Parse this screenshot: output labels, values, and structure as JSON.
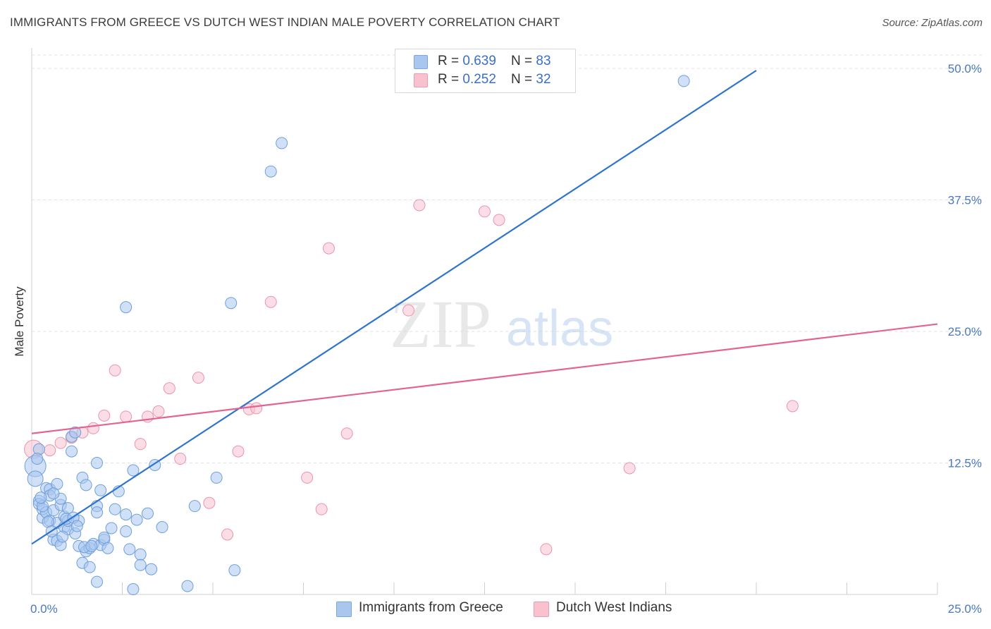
{
  "title": "IMMIGRANTS FROM GREECE VS DUTCH WEST INDIAN MALE POVERTY CORRELATION CHART",
  "source": "Source: ZipAtlas.com",
  "watermark": {
    "zip": "ZIP",
    "atlas": "atlas"
  },
  "legend": {
    "rows": [
      {
        "r_label": "R = ",
        "r_value": "0.639",
        "n_label": "N = ",
        "n_value": "83",
        "color": "#a9c7ee",
        "border": "#7aa7e0"
      },
      {
        "r_label": "R = ",
        "r_value": "0.252",
        "n_label": "N = ",
        "n_value": "32",
        "color": "#f7c1d0",
        "border": "#ee9ab2"
      }
    ]
  },
  "chart_data": {
    "type": "scatter",
    "title": "IMMIGRANTS FROM GREECE VS DUTCH WEST INDIAN MALE POVERTY CORRELATION CHART",
    "xlabel": "",
    "ylabel": "Male Poverty",
    "xlim": [
      0,
      25
    ],
    "ylim": [
      0,
      50
    ],
    "x_tick_labels": [
      "0.0%",
      "25.0%"
    ],
    "y_ticks": [
      12.5,
      25,
      37.5,
      50
    ],
    "y_tick_labels": [
      "12.5%",
      "25.0%",
      "37.5%",
      "50.0%"
    ],
    "grid": true,
    "legend_position": "top-center",
    "series": [
      {
        "name": "Immigrants from Greece",
        "color": "#a9c7ee",
        "stroke": "#6f9fdc",
        "line_color": "#2f74cc",
        "trend": {
          "x": [
            0,
            20
          ],
          "y": [
            4.8,
            49.8
          ]
        },
        "points": [
          [
            0.1,
            12.2
          ],
          [
            0.1,
            11.0
          ],
          [
            0.2,
            13.8
          ],
          [
            0.2,
            8.9
          ],
          [
            0.2,
            8.6
          ],
          [
            0.3,
            7.3
          ],
          [
            0.3,
            8.1
          ],
          [
            0.4,
            7.8
          ],
          [
            0.4,
            10.1
          ],
          [
            0.5,
            10.0
          ],
          [
            0.5,
            9.4
          ],
          [
            0.5,
            7.0
          ],
          [
            0.6,
            5.2
          ],
          [
            0.6,
            8.0
          ],
          [
            0.7,
            5.1
          ],
          [
            0.7,
            6.8
          ],
          [
            0.7,
            10.5
          ],
          [
            0.8,
            8.5
          ],
          [
            0.8,
            9.1
          ],
          [
            0.8,
            4.7
          ],
          [
            0.9,
            7.4
          ],
          [
            0.9,
            6.4
          ],
          [
            1.0,
            6.2
          ],
          [
            1.0,
            7.0
          ],
          [
            1.0,
            8.2
          ],
          [
            1.1,
            13.6
          ],
          [
            1.1,
            15.0
          ],
          [
            1.2,
            15.4
          ],
          [
            1.2,
            5.8
          ],
          [
            1.3,
            7.0
          ],
          [
            1.3,
            4.6
          ],
          [
            1.4,
            3.0
          ],
          [
            1.4,
            11.1
          ],
          [
            1.5,
            4.1
          ],
          [
            1.5,
            10.4
          ],
          [
            1.6,
            4.4
          ],
          [
            1.6,
            2.6
          ],
          [
            1.7,
            4.8
          ],
          [
            1.8,
            12.5
          ],
          [
            1.8,
            8.4
          ],
          [
            1.8,
            7.8
          ],
          [
            1.8,
            1.2
          ],
          [
            1.9,
            9.9
          ],
          [
            1.9,
            4.7
          ],
          [
            2.0,
            5.2
          ],
          [
            2.0,
            5.4
          ],
          [
            2.1,
            4.4
          ],
          [
            2.2,
            6.3
          ],
          [
            2.3,
            8.1
          ],
          [
            2.4,
            9.8
          ],
          [
            2.6,
            27.3
          ],
          [
            2.6,
            7.6
          ],
          [
            2.6,
            6.0
          ],
          [
            2.7,
            4.3
          ],
          [
            2.8,
            0.5
          ],
          [
            2.8,
            11.8
          ],
          [
            2.9,
            7.1
          ],
          [
            3.0,
            3.8
          ],
          [
            3.0,
            2.8
          ],
          [
            3.2,
            7.7
          ],
          [
            3.3,
            2.4
          ],
          [
            3.4,
            12.3
          ],
          [
            3.6,
            6.4
          ],
          [
            4.3,
            0.8
          ],
          [
            4.5,
            8.4
          ],
          [
            5.1,
            11.1
          ],
          [
            5.5,
            27.7
          ],
          [
            5.6,
            2.3
          ],
          [
            6.6,
            40.2
          ],
          [
            6.9,
            42.9
          ],
          [
            18.0,
            48.8
          ],
          [
            0.15,
            12.9
          ],
          [
            0.3,
            8.4
          ],
          [
            0.6,
            9.6
          ],
          [
            0.95,
            7.2
          ],
          [
            1.15,
            7.3
          ],
          [
            1.45,
            4.5
          ],
          [
            1.65,
            4.6
          ],
          [
            0.45,
            6.9
          ],
          [
            0.85,
            5.5
          ],
          [
            1.25,
            6.5
          ],
          [
            0.25,
            9.2
          ],
          [
            0.55,
            6.0
          ]
        ]
      },
      {
        "name": "Dutch West Indians",
        "color": "#f7c1d0",
        "stroke": "#e995ae",
        "line_color": "#e3648f",
        "trend": {
          "x": [
            0,
            25
          ],
          "y": [
            15.3,
            25.7
          ]
        },
        "points": [
          [
            0.05,
            13.8
          ],
          [
            0.5,
            13.7
          ],
          [
            0.8,
            14.4
          ],
          [
            1.1,
            14.9
          ],
          [
            1.4,
            15.4
          ],
          [
            1.7,
            15.8
          ],
          [
            2.0,
            17.0
          ],
          [
            2.3,
            21.3
          ],
          [
            2.6,
            16.9
          ],
          [
            3.0,
            14.3
          ],
          [
            3.2,
            16.9
          ],
          [
            3.5,
            17.4
          ],
          [
            3.8,
            19.6
          ],
          [
            4.1,
            12.9
          ],
          [
            4.6,
            20.6
          ],
          [
            4.9,
            8.7
          ],
          [
            5.4,
            5.7
          ],
          [
            5.7,
            13.6
          ],
          [
            6.0,
            17.6
          ],
          [
            6.2,
            17.7
          ],
          [
            6.6,
            27.8
          ],
          [
            7.6,
            11.1
          ],
          [
            8.0,
            8.1
          ],
          [
            8.2,
            32.9
          ],
          [
            8.7,
            15.3
          ],
          [
            10.4,
            27.0
          ],
          [
            10.7,
            37.0
          ],
          [
            12.5,
            36.4
          ],
          [
            12.9,
            35.6
          ],
          [
            14.2,
            4.3
          ],
          [
            16.5,
            12.0
          ],
          [
            21.0,
            17.9
          ]
        ]
      }
    ]
  },
  "bottom_legend": [
    {
      "label": "Immigrants from Greece",
      "color": "#a9c7ee",
      "border": "#7aa7e0"
    },
    {
      "label": "Dutch West Indians",
      "color": "#f7c1d0",
      "border": "#ee9ab2"
    }
  ]
}
